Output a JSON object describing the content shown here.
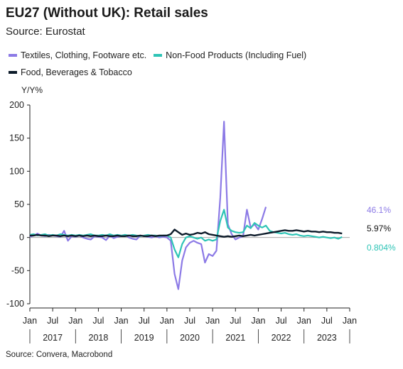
{
  "title": "EU27 (Without UK): Retail sales",
  "subtitle": "Source: Eurostat",
  "source_note": "Source: Convera, Macrobond",
  "chart_data": {
    "type": "line",
    "ylabel": "Y/Y%",
    "ylim": [
      -100,
      200
    ],
    "yticks": [
      -100,
      -50,
      0,
      50,
      100,
      150,
      200
    ],
    "x_range": [
      "2017-01",
      "2024-01"
    ],
    "month_ticks": [
      "Jan",
      "Jul",
      "Jan",
      "Jul",
      "Jan",
      "Jul",
      "Jan",
      "Jul",
      "Jan",
      "Jul",
      "Jan",
      "Jul",
      "Jan",
      "Jul",
      "Jan"
    ],
    "year_labels": [
      "2017",
      "2018",
      "2019",
      "2020",
      "2021",
      "2022",
      "2023"
    ],
    "grid": false,
    "legend_position": "top",
    "series": [
      {
        "name": "Textiles, Clothing, Footware etc.",
        "color": "#8c7ae6",
        "end_label": "46.1%",
        "end_value": 46.1,
        "x": [
          "2017-01",
          "2017-02",
          "2017-03",
          "2017-04",
          "2017-05",
          "2017-06",
          "2017-07",
          "2017-08",
          "2017-09",
          "2017-10",
          "2017-11",
          "2017-12",
          "2018-01",
          "2018-02",
          "2018-03",
          "2018-04",
          "2018-05",
          "2018-06",
          "2018-07",
          "2018-08",
          "2018-09",
          "2018-10",
          "2018-11",
          "2018-12",
          "2019-01",
          "2019-02",
          "2019-03",
          "2019-04",
          "2019-05",
          "2019-06",
          "2019-07",
          "2019-08",
          "2019-09",
          "2019-10",
          "2019-11",
          "2019-12",
          "2020-01",
          "2020-02",
          "2020-03",
          "2020-04",
          "2020-05",
          "2020-06",
          "2020-07",
          "2020-08",
          "2020-09",
          "2020-10",
          "2020-11",
          "2020-12",
          "2021-01",
          "2021-02",
          "2021-03",
          "2021-04",
          "2021-05",
          "2021-06",
          "2021-07",
          "2021-08",
          "2021-09",
          "2021-10",
          "2021-11",
          "2021-12",
          "2022-01",
          "2022-02",
          "2022-03"
        ],
        "values": [
          1,
          3,
          6,
          3,
          2,
          4,
          3,
          2,
          1,
          10,
          -5,
          2,
          1,
          3,
          0,
          -2,
          -3,
          2,
          1,
          0,
          -4,
          3,
          -1,
          1,
          2,
          4,
          0,
          -2,
          -3,
          3,
          2,
          1,
          0,
          2,
          0,
          1,
          0,
          -5,
          -55,
          -78,
          -35,
          -15,
          -8,
          -5,
          -8,
          -10,
          -38,
          -25,
          -28,
          -20,
          60,
          175,
          20,
          5,
          -3,
          0,
          2,
          42,
          15,
          20,
          12,
          28,
          46.1
        ]
      },
      {
        "name": "Non-Food Products (Including Fuel)",
        "color": "#2ec4b6",
        "end_label": "0.804%",
        "end_value": 0.804,
        "x": [
          "2017-01",
          "2017-02",
          "2017-03",
          "2017-04",
          "2017-05",
          "2017-06",
          "2017-07",
          "2017-08",
          "2017-09",
          "2017-10",
          "2017-11",
          "2017-12",
          "2018-01",
          "2018-02",
          "2018-03",
          "2018-04",
          "2018-05",
          "2018-06",
          "2018-07",
          "2018-08",
          "2018-09",
          "2018-10",
          "2018-11",
          "2018-12",
          "2019-01",
          "2019-02",
          "2019-03",
          "2019-04",
          "2019-05",
          "2019-06",
          "2019-07",
          "2019-08",
          "2019-09",
          "2019-10",
          "2019-11",
          "2019-12",
          "2020-01",
          "2020-02",
          "2020-03",
          "2020-04",
          "2020-05",
          "2020-06",
          "2020-07",
          "2020-08",
          "2020-09",
          "2020-10",
          "2020-11",
          "2020-12",
          "2021-01",
          "2021-02",
          "2021-03",
          "2021-04",
          "2021-05",
          "2021-06",
          "2021-07",
          "2021-08",
          "2021-09",
          "2021-10",
          "2021-11",
          "2021-12",
          "2022-01",
          "2022-02",
          "2022-03",
          "2022-04",
          "2022-05",
          "2022-06",
          "2022-07",
          "2022-08",
          "2022-09",
          "2022-10",
          "2022-11",
          "2022-12",
          "2023-01",
          "2023-02",
          "2023-03",
          "2023-04",
          "2023-05",
          "2023-06",
          "2023-07",
          "2023-08",
          "2023-09",
          "2023-10",
          "2023-11"
        ],
        "values": [
          4,
          5,
          3,
          4,
          5,
          3,
          4,
          3,
          5,
          4,
          3,
          4,
          3,
          4,
          3,
          4,
          5,
          3,
          3,
          4,
          3,
          5,
          3,
          4,
          3,
          4,
          3,
          4,
          3,
          2,
          3,
          4,
          3,
          3,
          2,
          3,
          3,
          0,
          -18,
          -30,
          -10,
          0,
          2,
          0,
          -2,
          0,
          -5,
          -3,
          -5,
          -3,
          25,
          42,
          15,
          10,
          8,
          7,
          8,
          18,
          14,
          22,
          18,
          15,
          18,
          10,
          8,
          7,
          6,
          7,
          5,
          4,
          5,
          3,
          2,
          3,
          2,
          1,
          0,
          1,
          0,
          -1,
          0,
          -2,
          0.804
        ]
      },
      {
        "name": "Food, Beverages & Tobacco",
        "color": "#0d1b2a",
        "end_label": "5.97%",
        "end_value": 5.97,
        "x": [
          "2017-01",
          "2017-02",
          "2017-03",
          "2017-04",
          "2017-05",
          "2017-06",
          "2017-07",
          "2017-08",
          "2017-09",
          "2017-10",
          "2017-11",
          "2017-12",
          "2018-01",
          "2018-02",
          "2018-03",
          "2018-04",
          "2018-05",
          "2018-06",
          "2018-07",
          "2018-08",
          "2018-09",
          "2018-10",
          "2018-11",
          "2018-12",
          "2019-01",
          "2019-02",
          "2019-03",
          "2019-04",
          "2019-05",
          "2019-06",
          "2019-07",
          "2019-08",
          "2019-09",
          "2019-10",
          "2019-11",
          "2019-12",
          "2020-01",
          "2020-02",
          "2020-03",
          "2020-04",
          "2020-05",
          "2020-06",
          "2020-07",
          "2020-08",
          "2020-09",
          "2020-10",
          "2020-11",
          "2020-12",
          "2021-01",
          "2021-02",
          "2021-03",
          "2021-04",
          "2021-05",
          "2021-06",
          "2021-07",
          "2021-08",
          "2021-09",
          "2021-10",
          "2021-11",
          "2021-12",
          "2022-01",
          "2022-02",
          "2022-03",
          "2022-04",
          "2022-05",
          "2022-06",
          "2022-07",
          "2022-08",
          "2022-09",
          "2022-10",
          "2022-11",
          "2022-12",
          "2023-01",
          "2023-02",
          "2023-03",
          "2023-04",
          "2023-05",
          "2023-06",
          "2023-07",
          "2023-08",
          "2023-09",
          "2023-10",
          "2023-11"
        ],
        "values": [
          3,
          3,
          4,
          3,
          3,
          2,
          3,
          3,
          2,
          3,
          2,
          3,
          2,
          3,
          2,
          3,
          2,
          3,
          2,
          2,
          3,
          2,
          2,
          3,
          2,
          2,
          3,
          2,
          2,
          3,
          2,
          2,
          3,
          2,
          3,
          3,
          3,
          5,
          12,
          8,
          4,
          6,
          4,
          5,
          7,
          6,
          8,
          5,
          4,
          3,
          2,
          1,
          2,
          1,
          2,
          3,
          2,
          3,
          4,
          3,
          4,
          5,
          6,
          7,
          8,
          9,
          10,
          11,
          10,
          10,
          11,
          10,
          9,
          10,
          9,
          9,
          8,
          9,
          8,
          8,
          7,
          7,
          5.97
        ]
      }
    ]
  }
}
